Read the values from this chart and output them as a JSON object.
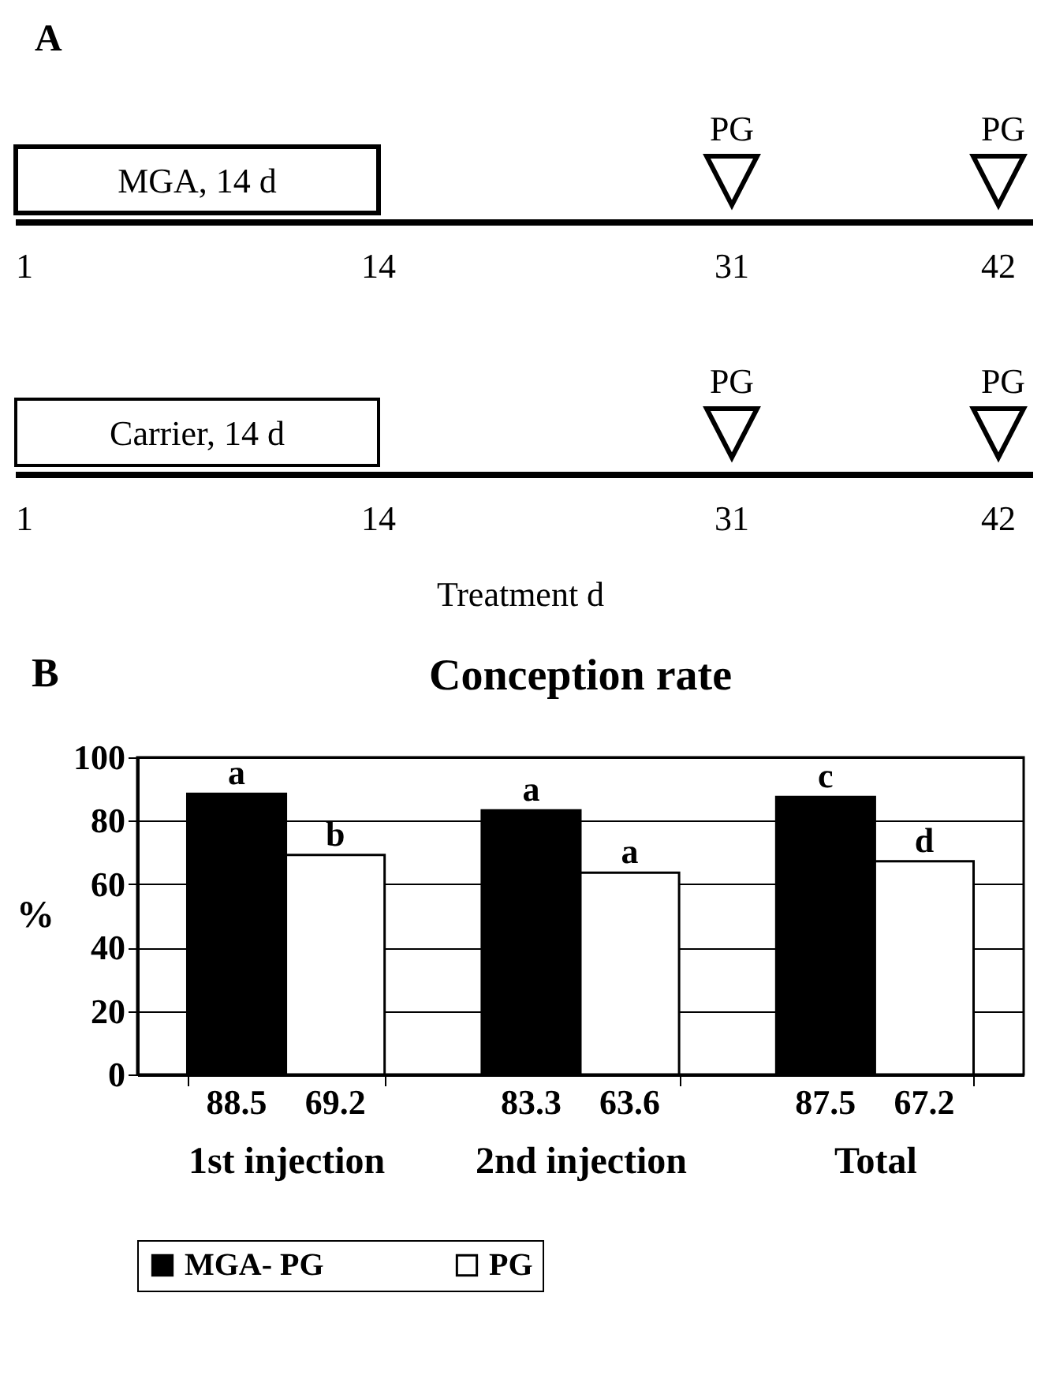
{
  "chart_data": [
    {
      "type": "other",
      "title": "A",
      "categories": [
        "1",
        "14",
        "31",
        "42"
      ],
      "xlabel": "Treatment d",
      "annotations": [
        "MGA, 14 d",
        "PG",
        "PG",
        "Carrier, 14 d",
        "PG",
        "PG"
      ]
    },
    {
      "type": "bar",
      "title": "Conception rate",
      "ylabel": "%",
      "categories": [
        "1st injection",
        "2nd injection",
        "Total"
      ],
      "series": [
        {
          "name": "MGA- PG",
          "color": "#000000",
          "values": [
            88.5,
            83.3,
            87.5
          ]
        },
        {
          "name": "PG",
          "color": "#ffffff",
          "values": [
            69.2,
            63.6,
            67.2
          ]
        }
      ],
      "ylim": [
        0,
        100
      ],
      "yticks": [
        0,
        20,
        40,
        60,
        80,
        100
      ],
      "grid": "y",
      "legend": "bottom",
      "data_labels": true,
      "annotations": [
        "B",
        {
          "text": "a",
          "x": "1st injection",
          "y": 88.5
        },
        {
          "text": "b",
          "x": "1st injection",
          "y": 69.2
        },
        {
          "text": "a",
          "x": "2nd injection",
          "y": 83.3
        },
        {
          "text": "a",
          "x": "2nd injection",
          "y": 63.6
        },
        {
          "text": "c",
          "x": "Total",
          "y": 87.5
        },
        {
          "text": "d",
          "x": "Total",
          "y": 67.2
        }
      ]
    }
  ]
}
